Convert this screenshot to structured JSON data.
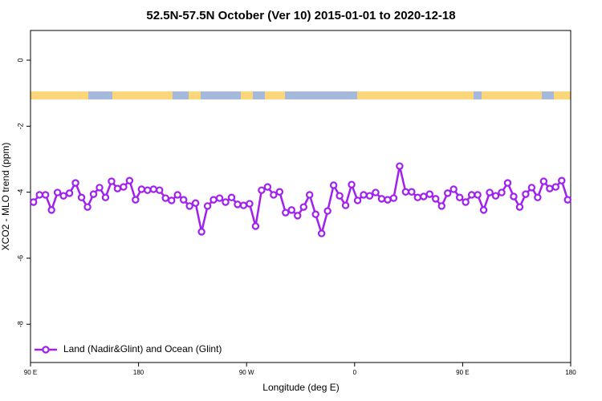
{
  "chart_data": {
    "type": "line",
    "title": "52.5N-57.5N October (Ver 10)   2015-01-01 to 2020-12-18",
    "x_label": "Longitude (deg E)",
    "y_label": "XCO2 - MLO trend (ppm)",
    "xlim": [
      90,
      540
    ],
    "ylim": [
      -9.16,
      0.9
    ],
    "xticks": [
      {
        "value": 90,
        "label": "90 E"
      },
      180,
      {
        "value": 270,
        "label": "90 W"
      },
      {
        "value": 360,
        "label": "0"
      },
      {
        "value": 450,
        "label": "90 E"
      },
      {
        "value": 540,
        "label": "180"
      }
    ],
    "yticks": [
      0,
      -2,
      -4,
      -6,
      -8
    ],
    "legend": "bottom-left",
    "x": [
      92.5,
      97.5,
      102.5,
      107.5,
      112.5,
      117.5,
      122.5,
      127.5,
      132.5,
      137.5,
      142.5,
      147.5,
      152.5,
      157.5,
      162.5,
      167.5,
      172.5,
      177.5,
      182.5,
      187.5,
      192.5,
      197.5,
      202.5,
      207.5,
      212.5,
      217.5,
      222.5,
      227.5,
      232.5,
      237.5,
      242.5,
      247.5,
      252.5,
      257.5,
      262.5,
      267.5,
      272.5,
      277.5,
      282.5,
      287.5,
      292.5,
      297.5,
      302.5,
      307.5,
      312.5,
      317.5,
      322.5,
      327.5,
      332.5,
      337.5,
      342.5,
      347.5,
      352.5,
      357.5,
      362.5,
      367.5,
      372.5,
      377.5,
      382.5,
      387.5,
      392.5,
      397.5,
      402.5,
      407.5,
      412.5,
      417.5,
      422.5,
      427.5,
      432.5,
      437.5,
      442.5,
      447.5,
      452.5,
      457.5,
      462.5,
      467.5,
      472.5,
      477.5,
      482.5,
      487.5,
      492.5,
      497.5,
      502.5,
      507.5,
      512.5,
      517.5,
      522.5,
      527.5,
      532.5,
      537.5
    ],
    "series": [
      {
        "name": "Land (Nadir&Glint) and Ocean (Glint)",
        "color": "#a020f0",
        "values": [
          -4.3,
          -4.08,
          -4.08,
          -4.54,
          -4.01,
          -4.11,
          -4.03,
          -3.72,
          -4.16,
          -4.45,
          -4.06,
          -3.86,
          -4.16,
          -3.67,
          -3.89,
          -3.84,
          -3.65,
          -4.23,
          -3.91,
          -3.94,
          -3.91,
          -3.94,
          -4.18,
          -4.25,
          -4.08,
          -4.23,
          -4.42,
          -4.33,
          -5.2,
          -4.42,
          -4.23,
          -4.18,
          -4.3,
          -4.16,
          -4.37,
          -4.4,
          -4.35,
          -5.03,
          -3.94,
          -3.84,
          -4.08,
          -3.99,
          -4.62,
          -4.54,
          -4.71,
          -4.45,
          -4.08,
          -4.67,
          -5.25,
          -4.57,
          -3.79,
          -4.11,
          -4.4,
          -3.77,
          -4.25,
          -4.08,
          -4.11,
          -4.01,
          -4.2,
          -4.23,
          -4.18,
          -3.21,
          -3.99,
          -3.99,
          -4.16,
          -4.13,
          -4.06,
          -4.2,
          -4.42,
          -4.03,
          -3.91,
          -4.16,
          -4.3,
          -4.08,
          -4.08,
          -4.54,
          -4.01,
          -4.11,
          -4.01,
          -3.72,
          -4.13,
          -4.45,
          -4.06,
          -3.86,
          -4.16,
          -3.67,
          -3.89,
          -3.84,
          -3.65,
          -4.23
        ]
      }
    ]
  }
}
